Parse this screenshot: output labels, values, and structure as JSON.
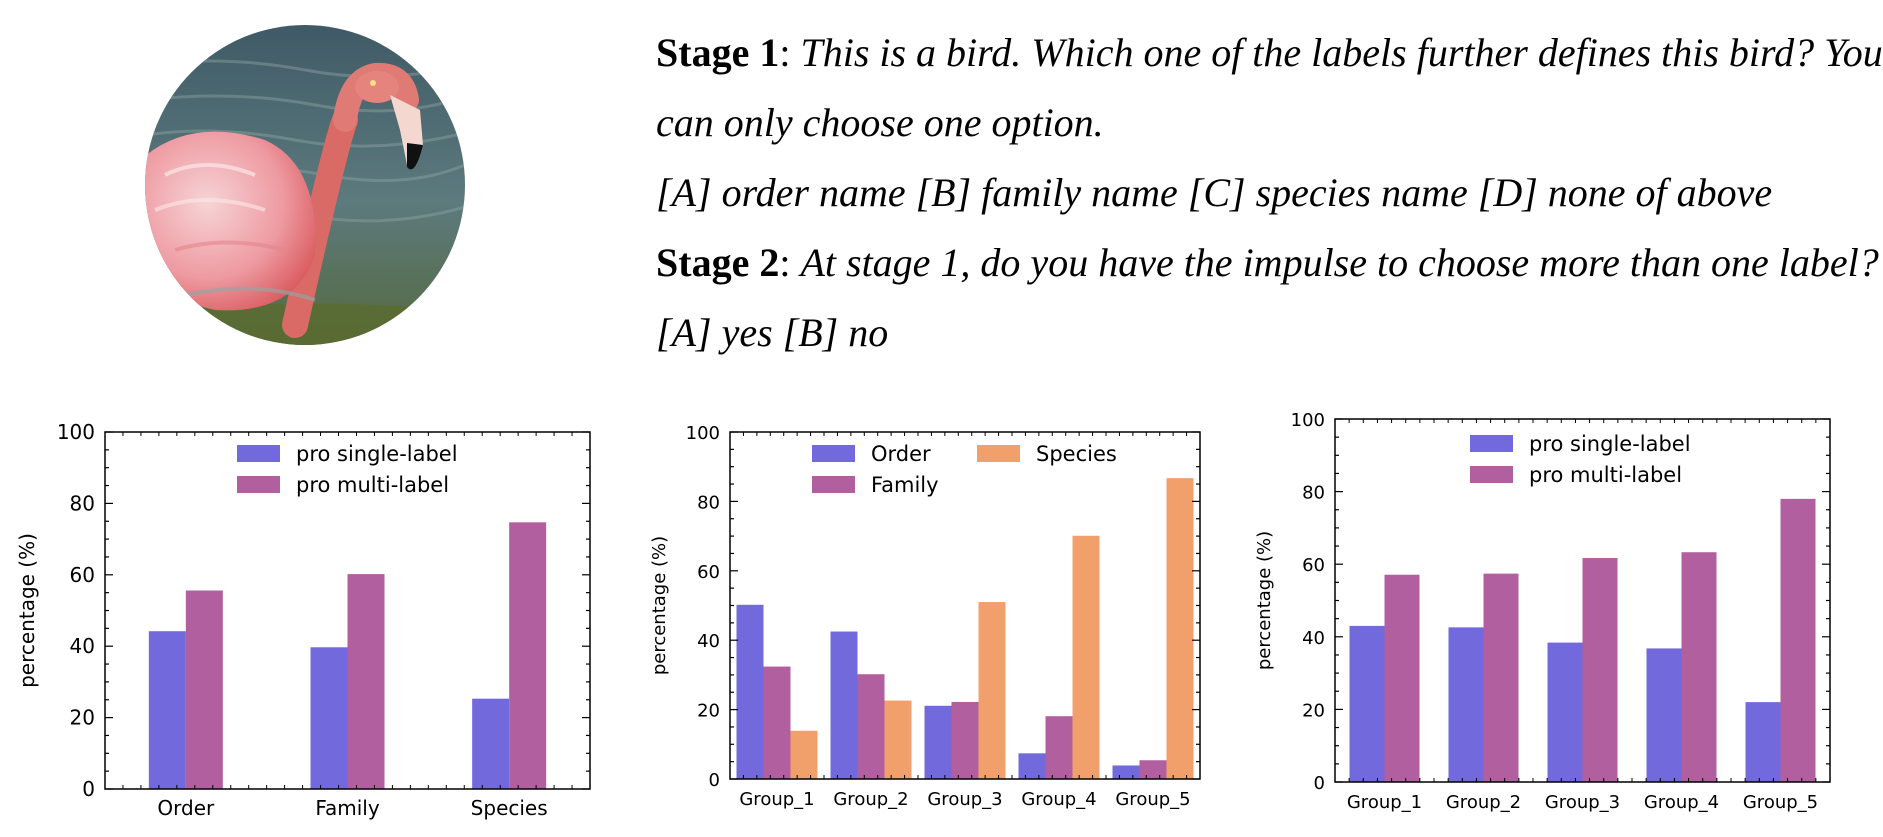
{
  "question": {
    "stage1_label": "Stage 1",
    "stage1_sep": ": ",
    "stage1_text_a": "This is a bird. Which one of the labels further defines this bird? You",
    "stage1_text_b": "can only choose one option.",
    "stage1_options": "[A] order name [B] family name [C] species name [D] none of above",
    "stage2_label": "Stage 2",
    "stage2_sep": ": ",
    "stage2_text": "At stage 1, do you have the impulse to choose more than one label?",
    "stage2_options": "[A] yes [B] no"
  },
  "photo": {
    "subject": "flamingo",
    "colors": {
      "water": "#4a6670",
      "water_light": "#7d9698",
      "plumage": "#e5707a",
      "neck": "#d95f5c",
      "beak_tip": "#111111",
      "wing": "#f0c6c8"
    }
  },
  "colors": {
    "single": "#7169dc",
    "multi": "#b15f9f",
    "species": "#f2a06b",
    "axis": "#000000"
  },
  "chart_data": [
    {
      "type": "bar",
      "title": "",
      "xlabel": "",
      "ylabel": "percentage (%)",
      "ylim": [
        0,
        100
      ],
      "yticks": [
        0,
        20,
        40,
        60,
        80,
        100
      ],
      "categories": [
        "Order",
        "Family",
        "Species"
      ],
      "series": [
        {
          "name": "pro single-label",
          "color": "#7169dc",
          "values": [
            44.2,
            39.7,
            25.3
          ]
        },
        {
          "name": "pro multi-label",
          "color": "#b15f9f",
          "values": [
            55.6,
            60.2,
            74.7
          ]
        }
      ],
      "legend": {
        "placement": "top-center",
        "columns": 1
      }
    },
    {
      "type": "bar",
      "title": "",
      "xlabel": "",
      "ylabel": "percentage (%)",
      "ylim": [
        0,
        100
      ],
      "yticks": [
        0,
        20,
        40,
        60,
        80,
        100
      ],
      "categories": [
        "Group_1",
        "Group_2",
        "Group_3",
        "Group_4",
        "Group_5"
      ],
      "series": [
        {
          "name": "Order",
          "color": "#7169dc",
          "values": [
            50.2,
            42.5,
            21.1,
            7.4,
            3.9
          ]
        },
        {
          "name": "Family",
          "color": "#b15f9f",
          "values": [
            32.4,
            30.2,
            22.2,
            18.1,
            5.4
          ]
        },
        {
          "name": "Species",
          "color": "#f2a06b",
          "values": [
            13.9,
            22.6,
            51.0,
            70.1,
            86.7
          ]
        }
      ],
      "legend": {
        "placement": "top-center",
        "columns": 2
      }
    },
    {
      "type": "bar",
      "title": "",
      "xlabel": "",
      "ylabel": "percentage (%)",
      "ylim": [
        0,
        100
      ],
      "yticks": [
        0,
        20,
        40,
        60,
        80,
        100
      ],
      "categories": [
        "Group_1",
        "Group_2",
        "Group_3",
        "Group_4",
        "Group_5"
      ],
      "series": [
        {
          "name": "pro single-label",
          "color": "#7169dc",
          "values": [
            43.0,
            42.6,
            38.4,
            36.8,
            22.0
          ]
        },
        {
          "name": "pro multi-label",
          "color": "#b15f9f",
          "values": [
            57.1,
            57.4,
            61.7,
            63.3,
            78.0
          ]
        }
      ],
      "legend": {
        "placement": "top-center",
        "columns": 1
      }
    }
  ]
}
